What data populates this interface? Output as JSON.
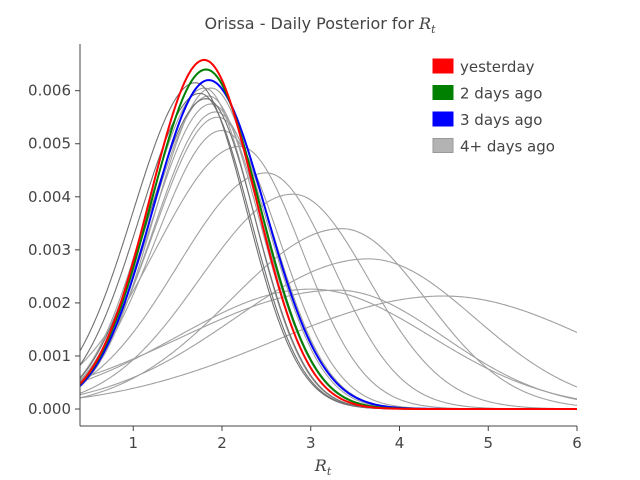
{
  "chart_data": {
    "type": "line",
    "title": "Orissa - Daily Posterior for ",
    "title_math": "R",
    "title_math_sub": "t",
    "xlabel_math": "R",
    "xlabel_math_sub": "t",
    "ylabel": "",
    "xlim": [
      0.4,
      6.0
    ],
    "ylim": [
      -0.00032,
      0.00688
    ],
    "xticks": [
      1,
      2,
      3,
      4,
      5,
      6
    ],
    "xtick_labels": [
      "1",
      "2",
      "3",
      "4",
      "5",
      "6"
    ],
    "yticks": [
      0.0,
      0.001,
      0.002,
      0.003,
      0.004,
      0.005,
      0.006
    ],
    "ytick_labels": [
      "0.000",
      "0.001",
      "0.002",
      "0.003",
      "0.004",
      "0.005",
      "0.006"
    ],
    "grid": false,
    "legend_position": "top-right",
    "legend": [
      {
        "label": "yesterday",
        "color": "#ff0000"
      },
      {
        "label": "2 days ago",
        "color": "#008000"
      },
      {
        "label": "3 days ago",
        "color": "#0000ff"
      },
      {
        "label": "4+ days ago",
        "color": "#b3b3b3"
      }
    ],
    "series": [
      {
        "group": "older",
        "color": "#a0a0a0",
        "peak_x": 4.5,
        "peak_y": 0.00213,
        "left_width": 1.9,
        "right_width": 1.7
      },
      {
        "group": "older",
        "color": "#a0a0a0",
        "peak_x": 3.3,
        "peak_y": 0.00224,
        "left_width": 1.75,
        "right_width": 1.2
      },
      {
        "group": "older",
        "color": "#a0a0a0",
        "peak_x": 3.0,
        "peak_y": 0.00226,
        "left_width": 1.5,
        "right_width": 1.35
      },
      {
        "group": "older",
        "color": "#a0a0a0",
        "peak_x": 3.65,
        "peak_y": 0.00283,
        "left_width": 1.5,
        "right_width": 1.2
      },
      {
        "group": "older",
        "color": "#a0a0a0",
        "peak_x": 3.35,
        "peak_y": 0.0034,
        "left_width": 1.25,
        "right_width": 0.95
      },
      {
        "group": "older",
        "color": "#a0a0a0",
        "peak_x": 2.8,
        "peak_y": 0.00405,
        "left_width": 1.05,
        "right_width": 0.85
      },
      {
        "group": "older",
        "color": "#a0a0a0",
        "peak_x": 2.5,
        "peak_y": 0.00445,
        "left_width": 1.0,
        "right_width": 0.75
      },
      {
        "group": "older",
        "color": "#a0a0a0",
        "peak_x": 2.2,
        "peak_y": 0.00495,
        "left_width": 0.95,
        "right_width": 0.7
      },
      {
        "group": "older",
        "color": "#a0a0a0",
        "peak_x": 2.0,
        "peak_y": 0.00525,
        "left_width": 0.75,
        "right_width": 0.65
      },
      {
        "group": "older",
        "color": "#a0a0a0",
        "peak_x": 1.95,
        "peak_y": 0.0055,
        "left_width": 0.72,
        "right_width": 0.62
      },
      {
        "group": "older",
        "color": "#a0a0a0",
        "peak_x": 1.93,
        "peak_y": 0.0056,
        "left_width": 0.7,
        "right_width": 0.6
      },
      {
        "group": "older",
        "color": "#a0a0a0",
        "peak_x": 1.88,
        "peak_y": 0.00575,
        "left_width": 0.68,
        "right_width": 0.58
      },
      {
        "group": "older",
        "color": "#a0a0a0",
        "peak_x": 1.85,
        "peak_y": 0.0059,
        "left_width": 0.66,
        "right_width": 0.57
      },
      {
        "group": "older",
        "color": "#a0a0a0",
        "peak_x": 1.88,
        "peak_y": 0.00605,
        "left_width": 0.64,
        "right_width": 0.58
      },
      {
        "group": "older",
        "color": "#a0a0a0",
        "peak_x": 1.8,
        "peak_y": 0.00605,
        "left_width": 0.65,
        "right_width": 0.56
      },
      {
        "group": "older",
        "color": "#707070",
        "peak_x": 1.75,
        "peak_y": 0.00595,
        "left_width": 0.68,
        "right_width": 0.57
      },
      {
        "group": "older",
        "color": "#707070",
        "peak_x": 1.7,
        "peak_y": 0.00615,
        "left_width": 0.7,
        "right_width": 0.58
      },
      {
        "group": "older",
        "color": "#707070",
        "peak_x": 1.82,
        "peak_y": 0.00585,
        "left_width": 0.66,
        "right_width": 0.56
      },
      {
        "group": "3 days ago",
        "color": "#0000ff",
        "peak_x": 1.85,
        "peak_y": 0.0062,
        "left_width": 0.63,
        "right_width": 0.64
      },
      {
        "group": "2 days ago",
        "color": "#008000",
        "peak_x": 1.82,
        "peak_y": 0.0064,
        "left_width": 0.62,
        "right_width": 0.6
      },
      {
        "group": "yesterday",
        "color": "#ff0000",
        "peak_x": 1.8,
        "peak_y": 0.00658,
        "left_width": 0.61,
        "right_width": 0.58
      }
    ]
  }
}
